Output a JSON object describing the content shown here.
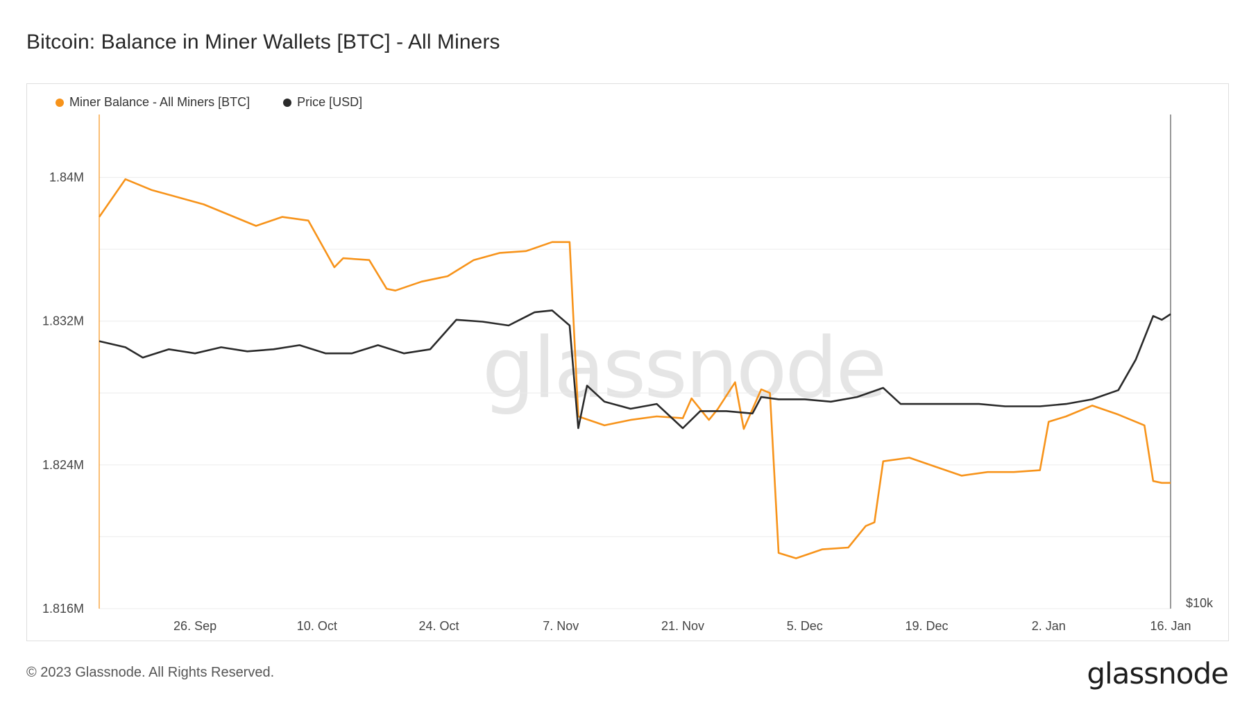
{
  "title": "Bitcoin: Balance in Miner Wallets [BTC] - All Miners",
  "footer": {
    "copyright": "© 2023 Glassnode. All Rights Reserved.",
    "logo": "glassnode"
  },
  "watermark": "glassnode",
  "colors": {
    "miner_balance": "#f7931a",
    "price": "#2a2a2a",
    "grid": "#ececec"
  },
  "chart_data": {
    "type": "line",
    "title": "Bitcoin: Balance in Miner Wallets [BTC] - All Miners",
    "legend_position": "top-left",
    "grid": true,
    "x_range": [
      "2022-09-15",
      "2023-01-16"
    ],
    "x_ticks": [
      "26. Sep",
      "10. Oct",
      "24. Oct",
      "7. Nov",
      "21. Nov",
      "5. Dec",
      "19. Dec",
      "2. Jan",
      "16. Jan"
    ],
    "y_left": {
      "ticks": [
        "1.84M",
        "1.832M",
        "1.824M",
        "1.816M"
      ],
      "range": [
        1816000,
        1843500
      ]
    },
    "y_right": {
      "ticks": [
        "$10k"
      ],
      "scale": "log",
      "range": [
        10000,
        35000
      ]
    },
    "series": [
      {
        "name": "Miner Balance - All Miners [BTC]",
        "axis": "left",
        "x": [
          "2022-09-15",
          "2022-09-18",
          "2022-09-21",
          "2022-09-24",
          "2022-09-27",
          "2022-09-30",
          "2022-10-03",
          "2022-10-06",
          "2022-10-09",
          "2022-10-12",
          "2022-10-13",
          "2022-10-16",
          "2022-10-18",
          "2022-10-19",
          "2022-10-22",
          "2022-10-25",
          "2022-10-28",
          "2022-10-31",
          "2022-11-03",
          "2022-11-06",
          "2022-11-08",
          "2022-11-09",
          "2022-11-12",
          "2022-11-15",
          "2022-11-18",
          "2022-11-21",
          "2022-11-22",
          "2022-11-24",
          "2022-11-25",
          "2022-11-27",
          "2022-11-28",
          "2022-11-30",
          "2022-12-01",
          "2022-12-02",
          "2022-12-04",
          "2022-12-07",
          "2022-12-10",
          "2022-12-12",
          "2022-12-13",
          "2022-12-14",
          "2022-12-17",
          "2022-12-20",
          "2022-12-23",
          "2022-12-26",
          "2022-12-29",
          "2023-01-01",
          "2023-01-02",
          "2023-01-04",
          "2023-01-07",
          "2023-01-10",
          "2023-01-13",
          "2023-01-14",
          "2023-01-15",
          "2023-01-16"
        ],
        "values": [
          1837800,
          1839900,
          1839300,
          1838900,
          1838500,
          1837900,
          1837300,
          1837800,
          1837600,
          1835000,
          1835500,
          1835400,
          1833800,
          1833700,
          1834200,
          1834500,
          1835400,
          1835800,
          1835900,
          1836400,
          1836400,
          1826700,
          1826200,
          1826500,
          1826700,
          1826600,
          1827700,
          1826500,
          1827100,
          1828600,
          1826000,
          1828200,
          1828000,
          1819100,
          1818800,
          1819300,
          1819400,
          1820600,
          1820800,
          1824200,
          1824400,
          1823900,
          1823400,
          1823600,
          1823600,
          1823700,
          1826400,
          1826700,
          1827300,
          1826800,
          1826200,
          1823100,
          1823000,
          1823000
        ]
      },
      {
        "name": "Price [USD]",
        "axis": "right",
        "x": [
          "2022-09-15",
          "2022-09-18",
          "2022-09-20",
          "2022-09-23",
          "2022-09-26",
          "2022-09-29",
          "2022-10-02",
          "2022-10-05",
          "2022-10-08",
          "2022-10-11",
          "2022-10-14",
          "2022-10-17",
          "2022-10-20",
          "2022-10-23",
          "2022-10-26",
          "2022-10-29",
          "2022-11-01",
          "2022-11-04",
          "2022-11-06",
          "2022-11-08",
          "2022-11-09",
          "2022-11-10",
          "2022-11-12",
          "2022-11-15",
          "2022-11-18",
          "2022-11-21",
          "2022-11-23",
          "2022-11-26",
          "2022-11-29",
          "2022-11-30",
          "2022-12-02",
          "2022-12-05",
          "2022-12-08",
          "2022-12-11",
          "2022-12-14",
          "2022-12-16",
          "2022-12-19",
          "2022-12-22",
          "2022-12-25",
          "2022-12-28",
          "2023-01-01",
          "2023-01-04",
          "2023-01-07",
          "2023-01-10",
          "2023-01-12",
          "2023-01-14",
          "2023-01-15",
          "2023-01-16"
        ],
        "values": [
          19700,
          19400,
          18900,
          19300,
          19100,
          19400,
          19200,
          19300,
          19500,
          19100,
          19100,
          19500,
          19100,
          19300,
          20800,
          20700,
          20500,
          21200,
          21300,
          20500,
          15800,
          17600,
          16900,
          16600,
          16800,
          15800,
          16500,
          16500,
          16400,
          17100,
          17000,
          17000,
          16900,
          17100,
          17500,
          16800,
          16800,
          16800,
          16800,
          16700,
          16700,
          16800,
          17000,
          17400,
          18800,
          21000,
          20800,
          21100
        ]
      }
    ]
  }
}
